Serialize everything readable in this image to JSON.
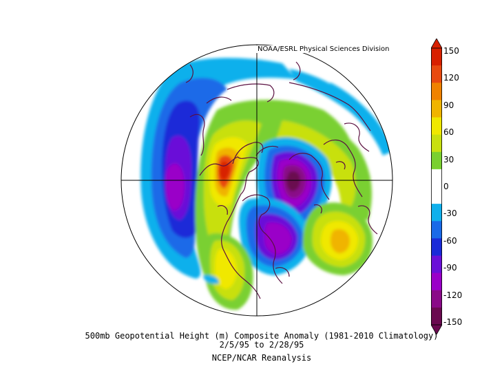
{
  "credit": "NOAA/ESRL Physical Sciences Division",
  "caption": {
    "line1": "500mb Geopotential Height (m) Composite Anomaly (1981-2010 Climatology)",
    "line2": "2/5/95  to 2/28/95",
    "line3": "NCEP/NCAR Reanalysis"
  },
  "colorbar": {
    "min": -150,
    "max": 150,
    "ticks": [
      "150",
      "120",
      "90",
      "60",
      "30",
      "0",
      "-30",
      "-60",
      "-90",
      "-120",
      "-150"
    ],
    "colors": [
      "#6a0a50",
      "#8a0a88",
      "#9a00c8",
      "#6a10d8",
      "#1a2ad8",
      "#1a6ae8",
      "#10b0ec",
      "#ffffff",
      "#ffffff",
      "#7ad030",
      "#c8e010",
      "#f0e800",
      "#f0b400",
      "#f08200",
      "#e84a10",
      "#d82000"
    ]
  },
  "map": {
    "projection": "north-polar-stereographic",
    "anomalies": [
      {
        "name": "pacific-trough",
        "value": -110
      },
      {
        "name": "western-north-america-ridge",
        "value": 120
      },
      {
        "name": "arctic-low",
        "value": -140
      },
      {
        "name": "eastern-north-america-trough",
        "value": -100
      },
      {
        "name": "atlantic-ridge",
        "value": 70
      },
      {
        "name": "eurasia-ridge",
        "value": 60
      },
      {
        "name": "gulf-ridge",
        "value": 40
      },
      {
        "name": "siberia-negative",
        "value": -20
      }
    ]
  }
}
